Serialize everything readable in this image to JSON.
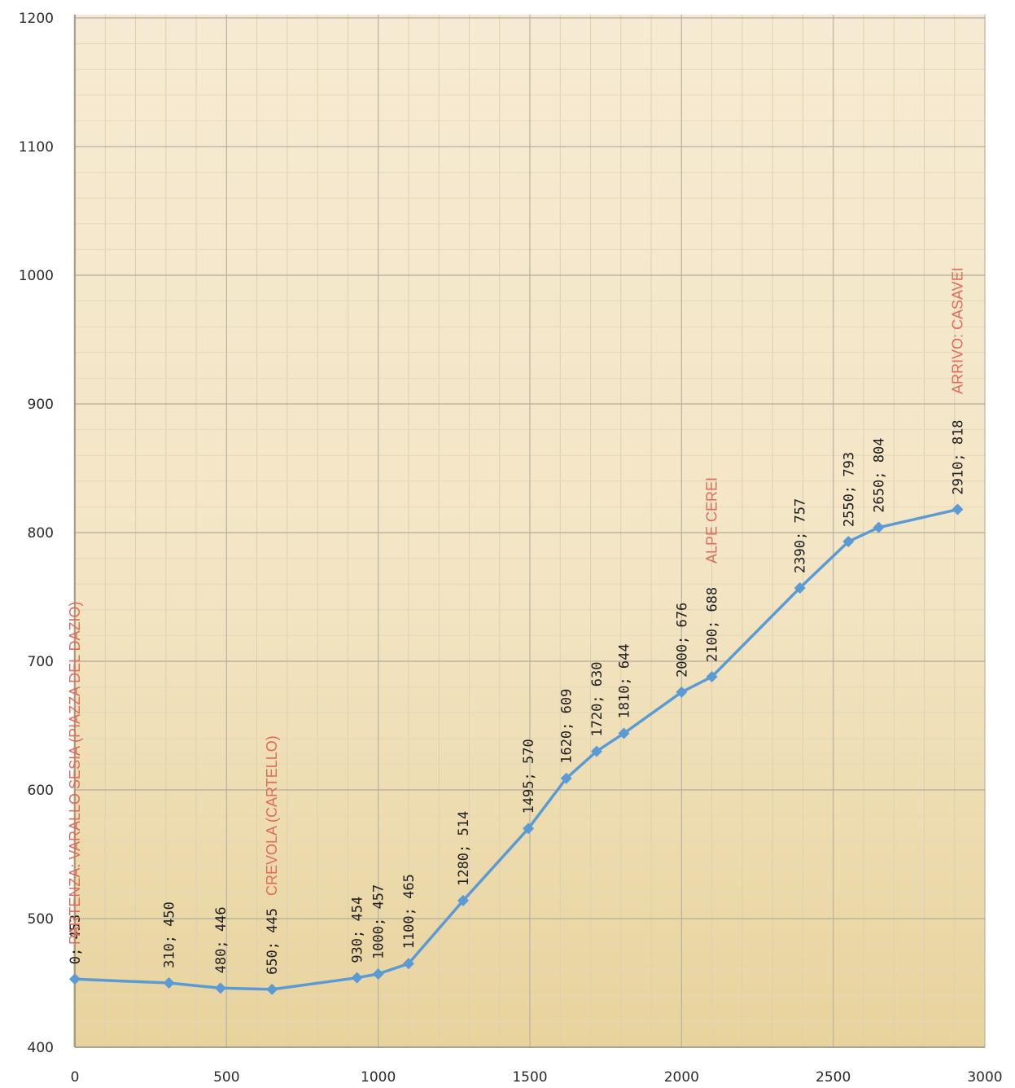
{
  "chart_data": {
    "type": "line",
    "xlim": [
      0,
      3000
    ],
    "ylim": [
      400,
      1200
    ],
    "x_ticks": [
      "0",
      "500",
      "1000",
      "1500",
      "2000",
      "2500",
      "3000"
    ],
    "y_ticks": [
      "400",
      "500",
      "600",
      "700",
      "800",
      "900",
      "1000",
      "1100",
      "1200"
    ],
    "grid": true,
    "series": [
      {
        "color": "#5b9bd5",
        "points": [
          {
            "x": 0,
            "y": 453,
            "label": "0; 453"
          },
          {
            "x": 310,
            "y": 450,
            "label": "310; 450"
          },
          {
            "x": 480,
            "y": 446,
            "label": "480; 446"
          },
          {
            "x": 650,
            "y": 445,
            "label": "650; 445"
          },
          {
            "x": 930,
            "y": 454,
            "label": "930; 454"
          },
          {
            "x": 1000,
            "y": 457,
            "label": "1000; 457"
          },
          {
            "x": 1100,
            "y": 465,
            "label": "1100; 465"
          },
          {
            "x": 1280,
            "y": 514,
            "label": "1280; 514"
          },
          {
            "x": 1495,
            "y": 570,
            "label": "1495; 570"
          },
          {
            "x": 1620,
            "y": 609,
            "label": "1620; 609"
          },
          {
            "x": 1720,
            "y": 630,
            "label": "1720; 630"
          },
          {
            "x": 1810,
            "y": 644,
            "label": "1810; 644"
          },
          {
            "x": 2000,
            "y": 676,
            "label": "2000; 676"
          },
          {
            "x": 2100,
            "y": 688,
            "label": "2100; 688"
          },
          {
            "x": 2390,
            "y": 757,
            "label": "2390; 757"
          },
          {
            "x": 2550,
            "y": 793,
            "label": "2550; 793"
          },
          {
            "x": 2650,
            "y": 804,
            "label": "2650; 804"
          },
          {
            "x": 2910,
            "y": 818,
            "label": "2910; 818"
          }
        ]
      }
    ],
    "annotations": [
      {
        "text": "PARTENZA: VARALLO SESIA (PIAZZA DEL DAZIO)",
        "x": 0,
        "color": "#e06b5a"
      },
      {
        "text": "CREVOLA (CARTELLO)",
        "x": 650,
        "color": "#e06b5a"
      },
      {
        "text": "ALPE CEREI",
        "x": 2100,
        "color": "#e06b5a"
      },
      {
        "text": "ARRIVO: CASAVEI",
        "x": 2910,
        "color": "#e06b5a"
      }
    ]
  }
}
